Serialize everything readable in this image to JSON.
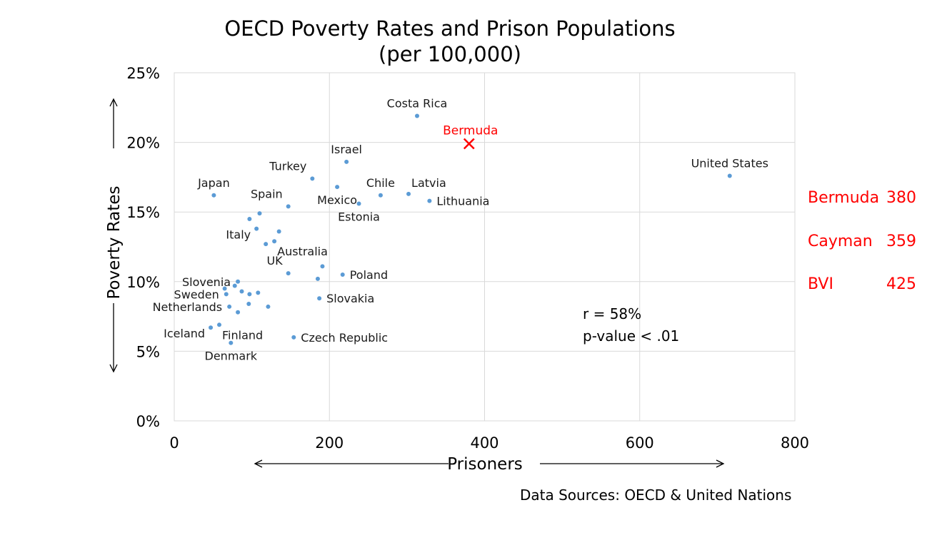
{
  "chart_data": {
    "type": "scatter",
    "title": "OECD Poverty Rates and Prison Populations",
    "subtitle": "(per 100,000)",
    "xlabel": "Prisoners",
    "ylabel": "Poverty Rates",
    "xlim": [
      0,
      800
    ],
    "ylim": [
      0,
      25
    ],
    "x_ticks": [
      {
        "value": 0,
        "label": "0"
      },
      {
        "value": 200,
        "label": "200"
      },
      {
        "value": 400,
        "label": "400"
      },
      {
        "value": 600,
        "label": "600"
      },
      {
        "value": 800,
        "label": "800"
      }
    ],
    "y_ticks": [
      {
        "value": 0,
        "label": "0%"
      },
      {
        "value": 5,
        "label": "5%"
      },
      {
        "value": 10,
        "label": "10%"
      },
      {
        "value": 15,
        "label": "15%"
      },
      {
        "value": 20,
        "label": "20%"
      },
      {
        "value": 25,
        "label": "25%"
      }
    ],
    "grid": true,
    "point_color": "#5b9bd5",
    "highlight_color": "#ff0000",
    "points": [
      {
        "label": "Costa Rica",
        "x": 313,
        "y": 21.9,
        "anchor": "above"
      },
      {
        "label": "Israel",
        "x": 222,
        "y": 18.6,
        "anchor": "above"
      },
      {
        "label": "Turkey",
        "x": 178,
        "y": 17.4,
        "anchor": "above-left"
      },
      {
        "label": "Japan",
        "x": 51,
        "y": 16.2,
        "anchor": "above"
      },
      {
        "label": "Mexico",
        "x": 210,
        "y": 16.8,
        "anchor": "below"
      },
      {
        "label": "Chile",
        "x": 266,
        "y": 16.2,
        "anchor": "above"
      },
      {
        "label": "Latvia",
        "x": 302,
        "y": 16.3,
        "anchor": "above-right"
      },
      {
        "label": "Lithuania",
        "x": 329,
        "y": 15.8,
        "anchor": "right"
      },
      {
        "label": "Spain",
        "x": 147,
        "y": 15.4,
        "anchor": "above-left"
      },
      {
        "label": "Estonia",
        "x": 238,
        "y": 15.6,
        "anchor": "below"
      },
      {
        "label": "United States",
        "x": 716,
        "y": 17.6,
        "anchor": "above"
      },
      {
        "label": "",
        "x": 110,
        "y": 14.9
      },
      {
        "label": "",
        "x": 97,
        "y": 14.5
      },
      {
        "label": "Italy",
        "x": 106,
        "y": 13.8,
        "anchor": "left-below"
      },
      {
        "label": "",
        "x": 135,
        "y": 13.6
      },
      {
        "label": "Australia",
        "x": 129,
        "y": 12.9,
        "anchor": "right-below"
      },
      {
        "label": "",
        "x": 118,
        "y": 12.7
      },
      {
        "label": "UK",
        "x": 147,
        "y": 10.6,
        "anchor": "above-left"
      },
      {
        "label": "Poland",
        "x": 217,
        "y": 10.5,
        "anchor": "right"
      },
      {
        "label": "",
        "x": 191,
        "y": 11.1
      },
      {
        "label": "",
        "x": 185,
        "y": 10.2
      },
      {
        "label": "Slovenia",
        "x": 82,
        "y": 10.0,
        "anchor": "left"
      },
      {
        "label": "",
        "x": 65,
        "y": 9.5
      },
      {
        "label": "",
        "x": 78,
        "y": 9.7
      },
      {
        "label": "Sweden",
        "x": 67,
        "y": 9.1,
        "anchor": "left"
      },
      {
        "label": "",
        "x": 87,
        "y": 9.3
      },
      {
        "label": "",
        "x": 97,
        "y": 9.1
      },
      {
        "label": "",
        "x": 108,
        "y": 9.2
      },
      {
        "label": "Slovakia",
        "x": 187,
        "y": 8.8,
        "anchor": "right"
      },
      {
        "label": "Netherlands",
        "x": 71,
        "y": 8.2,
        "anchor": "left"
      },
      {
        "label": "",
        "x": 96,
        "y": 8.4
      },
      {
        "label": "",
        "x": 121,
        "y": 8.2
      },
      {
        "label": "",
        "x": 82,
        "y": 7.8
      },
      {
        "label": "Finland",
        "x": 58,
        "y": 6.9,
        "anchor": "right-below"
      },
      {
        "label": "Iceland",
        "x": 47,
        "y": 6.7,
        "anchor": "left-below"
      },
      {
        "label": "Czech Republic",
        "x": 154,
        "y": 6.0,
        "anchor": "right"
      },
      {
        "label": "Denmark",
        "x": 73,
        "y": 5.6,
        "anchor": "below"
      }
    ],
    "highlight": {
      "label": "Bermuda",
      "x": 380,
      "y": 19.9,
      "marker": "x"
    },
    "annotations": {
      "stats": [
        "r = 58%",
        "p-value < .01"
      ],
      "side_values": [
        {
          "name": "Bermuda",
          "value": "380"
        },
        {
          "name": "Cayman",
          "value": "359"
        },
        {
          "name": "BVI",
          "value": "425"
        }
      ]
    },
    "source": "Data Sources: OECD & United Nations"
  }
}
